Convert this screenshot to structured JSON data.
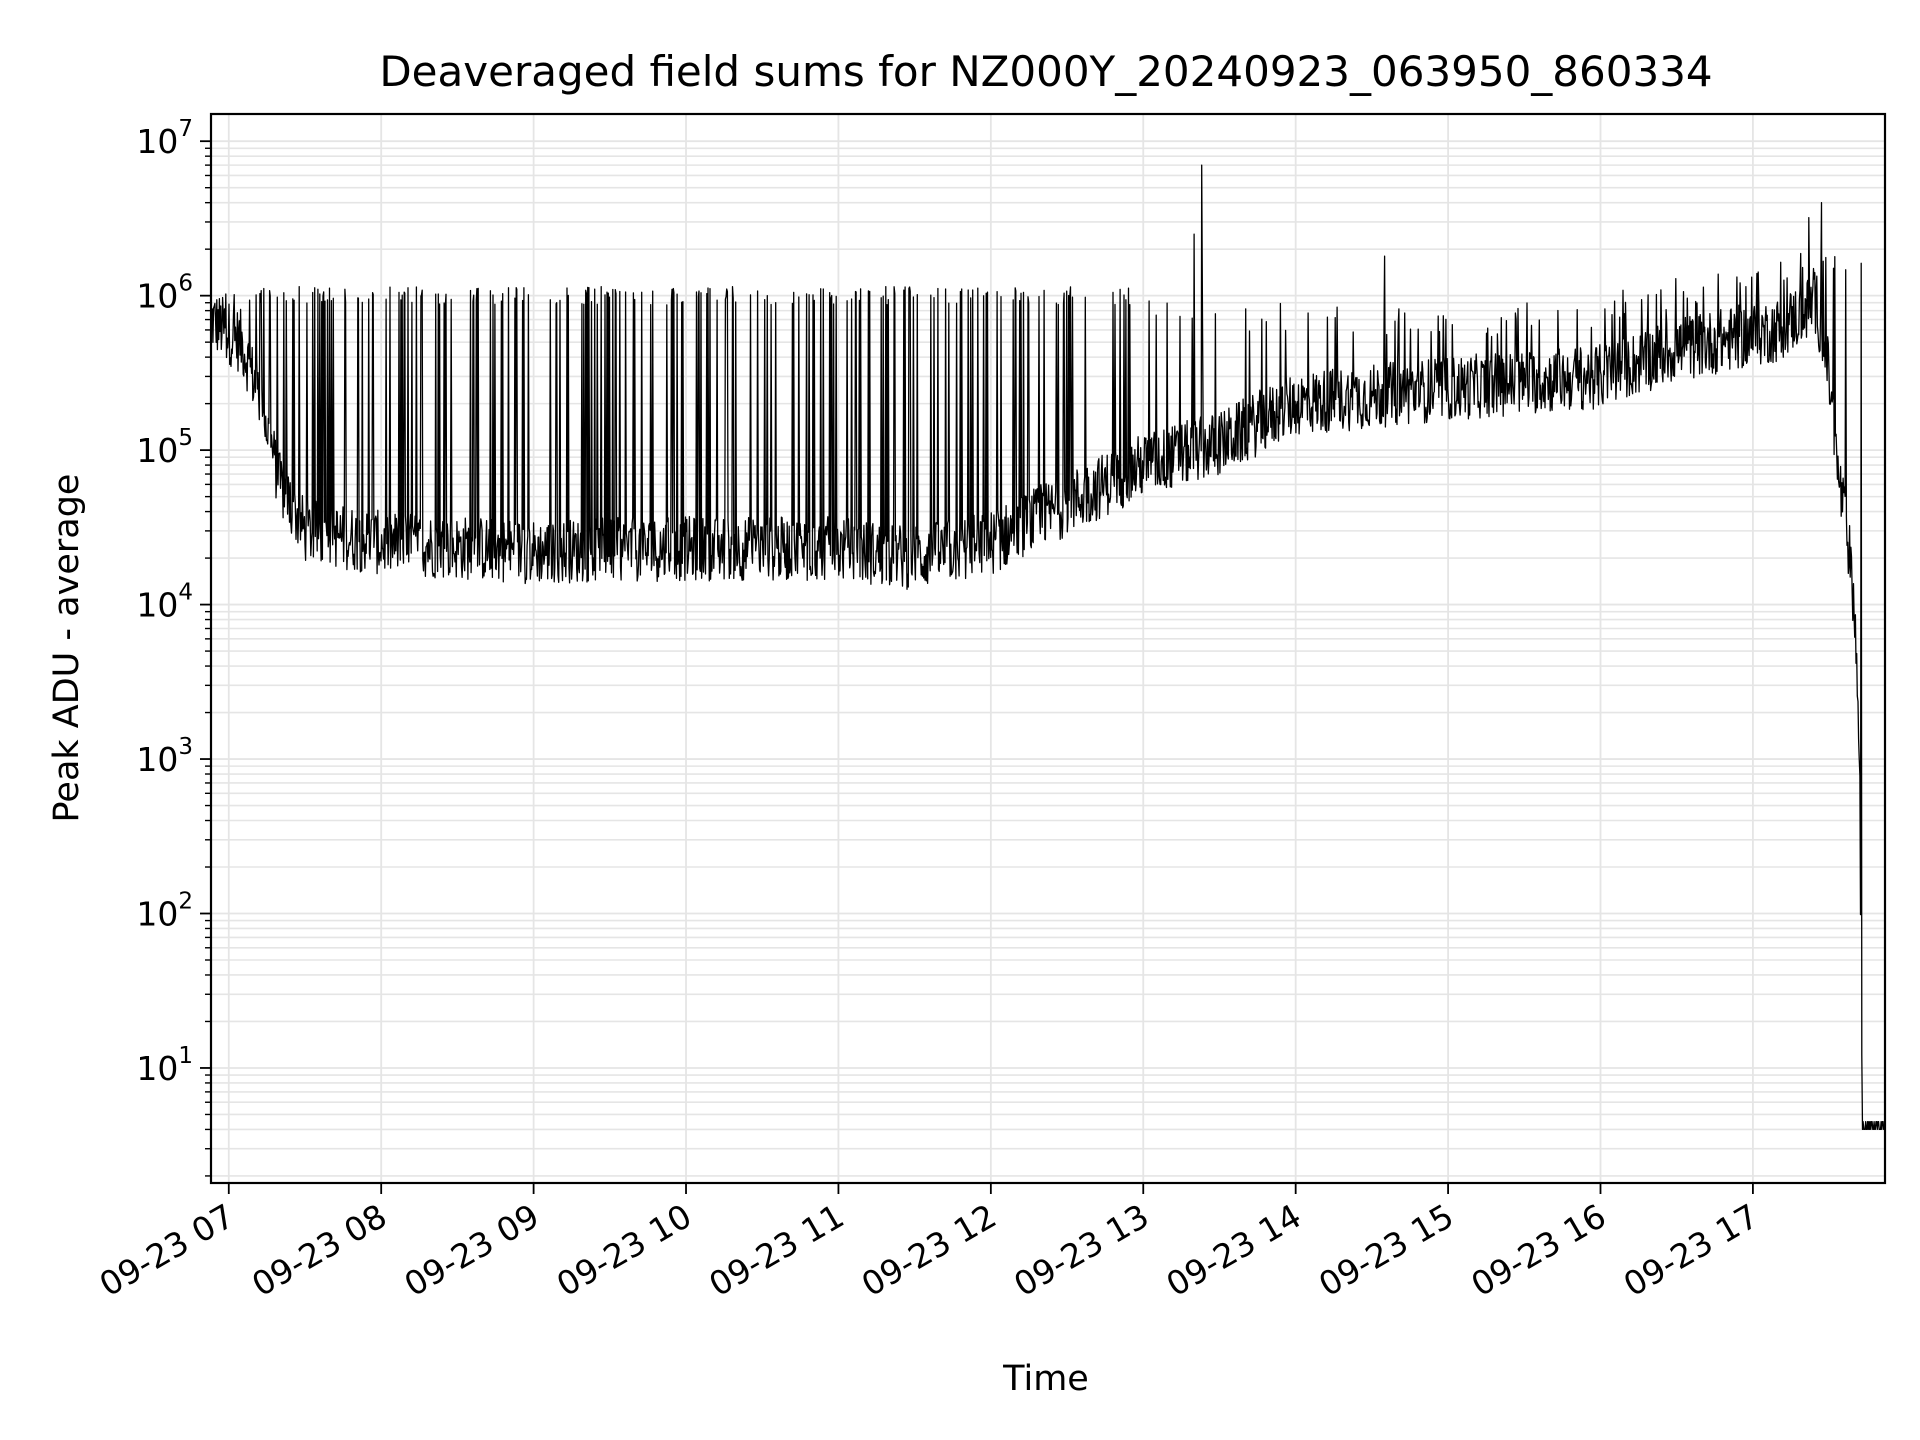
{
  "chart_data": {
    "type": "line",
    "title": "Deaveraged field sums for NZ000Y_20240923_063950_860334",
    "xlabel": "Time",
    "ylabel": "Peak ADU - average",
    "y_scale": "log",
    "ylim": [
      1.8,
      15000000
    ],
    "y_ticks": [
      {
        "value": 10,
        "base": "10",
        "exp": "1"
      },
      {
        "value": 100,
        "base": "10",
        "exp": "2"
      },
      {
        "value": 1000,
        "base": "10",
        "exp": "3"
      },
      {
        "value": 10000,
        "base": "10",
        "exp": "4"
      },
      {
        "value": 100000,
        "base": "10",
        "exp": "5"
      },
      {
        "value": 1000000,
        "base": "10",
        "exp": "6"
      },
      {
        "value": 10000000,
        "base": "10",
        "exp": "7"
      }
    ],
    "x_range": [
      "2024-09-23 06:53",
      "2024-09-23 17:52"
    ],
    "x_ticks": [
      {
        "value": "2024-09-23 07:00",
        "label": "09-23 07"
      },
      {
        "value": "2024-09-23 08:00",
        "label": "09-23 08"
      },
      {
        "value": "2024-09-23 09:00",
        "label": "09-23 09"
      },
      {
        "value": "2024-09-23 10:00",
        "label": "09-23 10"
      },
      {
        "value": "2024-09-23 11:00",
        "label": "09-23 11"
      },
      {
        "value": "2024-09-23 12:00",
        "label": "09-23 12"
      },
      {
        "value": "2024-09-23 13:00",
        "label": "09-23 13"
      },
      {
        "value": "2024-09-23 14:00",
        "label": "09-23 14"
      },
      {
        "value": "2024-09-23 15:00",
        "label": "09-23 15"
      },
      {
        "value": "2024-09-23 16:00",
        "label": "09-23 16"
      },
      {
        "value": "2024-09-23 17:00",
        "label": "09-23 17"
      }
    ],
    "grid": true,
    "line_color": "#000000",
    "grid_color": "#e5e5e5",
    "series": [
      {
        "baseline": [
          {
            "x": "2024-09-23 06:53",
            "y": 700000
          },
          {
            "x": "2024-09-23 07:05",
            "y": 500000
          },
          {
            "x": "2024-09-23 07:13",
            "y": 200000
          },
          {
            "x": "2024-09-23 07:20",
            "y": 60000
          },
          {
            "x": "2024-09-23 07:30",
            "y": 30000
          },
          {
            "x": "2024-09-23 08:00",
            "y": 25000
          },
          {
            "x": "2024-09-23 09:00",
            "y": 22000
          },
          {
            "x": "2024-09-23 10:00",
            "y": 23000
          },
          {
            "x": "2024-09-23 11:00",
            "y": 23000
          },
          {
            "x": "2024-09-23 11:30",
            "y": 20000
          },
          {
            "x": "2024-09-23 12:00",
            "y": 25000
          },
          {
            "x": "2024-09-23 12:30",
            "y": 45000
          },
          {
            "x": "2024-09-23 13:00",
            "y": 80000
          },
          {
            "x": "2024-09-23 13:30",
            "y": 110000
          },
          {
            "x": "2024-09-23 14:00",
            "y": 200000
          },
          {
            "x": "2024-09-23 15:00",
            "y": 250000
          },
          {
            "x": "2024-09-23 16:00",
            "y": 300000
          },
          {
            "x": "2024-09-23 16:30",
            "y": 450000
          },
          {
            "x": "2024-09-23 17:10",
            "y": 600000
          },
          {
            "x": "2024-09-23 17:25",
            "y": 900000
          },
          {
            "x": "2024-09-23 17:30",
            "y": 300000
          },
          {
            "x": "2024-09-23 17:33",
            "y": 80000
          },
          {
            "x": "2024-09-23 17:37",
            "y": 30000
          },
          {
            "x": "2024-09-23 17:40",
            "y": 10000
          },
          {
            "x": "2024-09-23 17:42",
            "y": 1000
          },
          {
            "x": "2024-09-23 17:43",
            "y": 4
          },
          {
            "x": "2024-09-23 17:52",
            "y": 4
          }
        ],
        "spike_level": [
          {
            "x": "2024-09-23 06:53",
            "y": 1000000
          },
          {
            "x": "2024-09-23 12:00",
            "y": 1000000
          },
          {
            "x": "2024-09-23 13:00",
            "y": 1000000
          },
          {
            "x": "2024-09-23 14:00",
            "y": 900000
          },
          {
            "x": "2024-09-23 15:00",
            "y": 800000
          },
          {
            "x": "2024-09-23 16:00",
            "y": 1000000
          },
          {
            "x": "2024-09-23 17:15",
            "y": 2000000
          }
        ],
        "peaks": [
          {
            "x": "2024-09-23 13:23",
            "y": 7000000
          },
          {
            "x": "2024-09-23 13:20",
            "y": 2500000
          },
          {
            "x": "2024-09-23 17:27",
            "y": 4000000
          },
          {
            "x": "2024-09-23 17:22",
            "y": 3200000
          },
          {
            "x": "2024-09-23 14:35",
            "y": 1800000
          }
        ]
      }
    ]
  }
}
